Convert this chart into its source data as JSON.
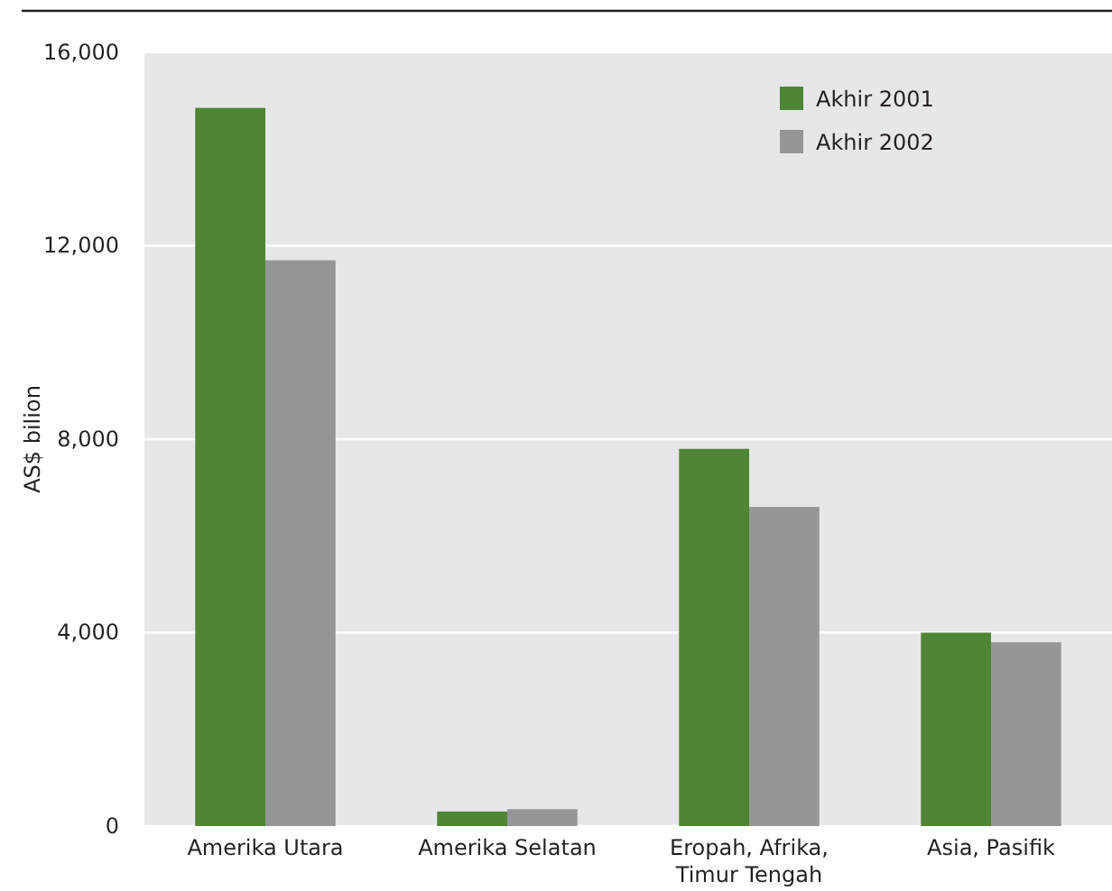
{
  "chart_data": {
    "type": "bar",
    "ylabel": "AS$ bilion",
    "categories": [
      "Amerika Utara",
      "Amerika Selatan",
      "Eropah, Afrika, Timur Tengah",
      "Asia, Pasifik"
    ],
    "series": [
      {
        "name": "Akhir 2001",
        "color": "#508535",
        "values": [
          14850,
          300,
          7800,
          4000
        ]
      },
      {
        "name": "Akhir 2002",
        "color": "#959699",
        "values": [
          11700,
          350,
          6600,
          3800
        ]
      }
    ],
    "ylim": [
      0,
      16000
    ],
    "yticks": [
      0,
      {
        "value": 4000,
        "label": "4,000"
      },
      {
        "value": 8000,
        "label": "8,000"
      },
      {
        "value": 12000,
        "label": "12,000"
      },
      {
        "value": 16000,
        "label": "16,000"
      }
    ],
    "grid": "y",
    "legend": "top right"
  }
}
